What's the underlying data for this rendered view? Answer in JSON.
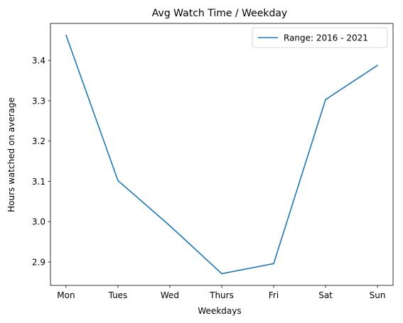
{
  "chart_data": {
    "type": "line",
    "title": "Avg Watch Time / Weekday",
    "xlabel": "Weekdays",
    "ylabel": "Hours watched on average",
    "categories": [
      "Mon",
      "Tues",
      "Wed",
      "Thurs",
      "Fri",
      "Sat",
      "Sun"
    ],
    "series": [
      {
        "name": "Range: 2016 - 2021",
        "values": [
          3.463,
          3.102,
          2.99,
          2.871,
          2.896,
          3.303,
          3.388
        ],
        "color": "#1f77b4"
      }
    ],
    "ylim": [
      2.842,
      3.492
    ],
    "yticks": [
      2.9,
      3.0,
      3.1,
      3.2,
      3.3,
      3.4
    ],
    "ytick_labels": [
      "2.9",
      "3.0",
      "3.1",
      "3.2",
      "3.3",
      "3.4"
    ],
    "grid": false,
    "legend_position": "top-right"
  }
}
